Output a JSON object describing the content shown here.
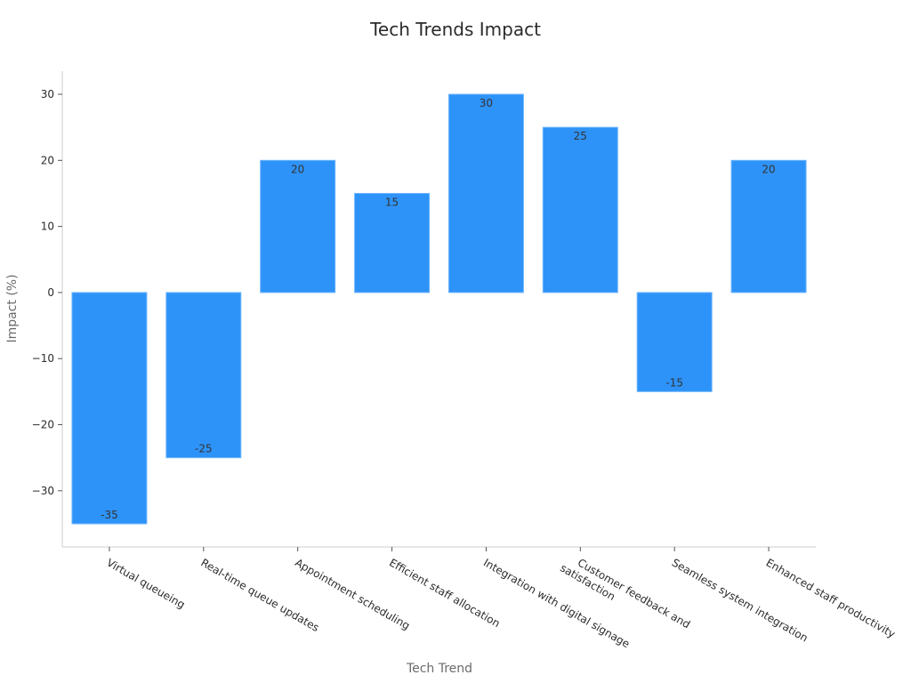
{
  "chart_data": {
    "type": "bar",
    "title": "Tech Trends Impact",
    "xlabel": "Tech Trend",
    "ylabel": "Impact (%)",
    "categories": [
      "Virtual queueing",
      "Real-time queue updates",
      "Appointment scheduling",
      "Efficient staff allocation",
      "Integration with digital signage",
      "Customer feedback and satisfaction",
      "Seamless system integration",
      "Enhanced staff productivity"
    ],
    "category_label_lines": [
      [
        "Virtual queueing"
      ],
      [
        "Real-time queue updates"
      ],
      [
        "Appointment scheduling"
      ],
      [
        "Efficient staff allocation"
      ],
      [
        "Integration with digital signage"
      ],
      [
        "Customer feedback and",
        "satisfaction"
      ],
      [
        "Seamless system integration"
      ],
      [
        "Enhanced staff productivity"
      ]
    ],
    "values": [
      -35,
      -25,
      20,
      15,
      30,
      25,
      -15,
      20
    ],
    "data_labels": [
      "-35",
      "-25",
      "20",
      "15",
      "30",
      "25",
      "-15",
      "20"
    ],
    "yticks": [
      -30,
      -20,
      -10,
      0,
      10,
      20,
      30
    ],
    "ytick_labels": [
      "−30",
      "−20",
      "−10",
      "0",
      "10",
      "20",
      "30"
    ],
    "ylim": [
      -38.5,
      33.5
    ],
    "bar_color": "#2E93F8",
    "bar_edge_color": "#6FB6FF",
    "axis_color": "#cccccc",
    "grid": false,
    "legend": "none"
  }
}
